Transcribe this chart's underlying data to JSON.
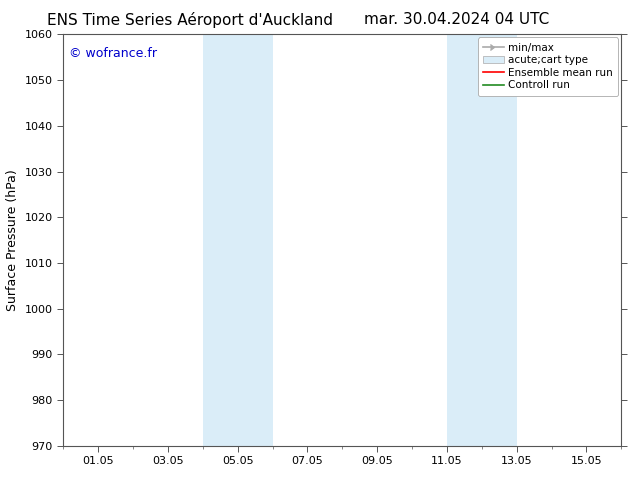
{
  "title_left": "ENS Time Series Aéroport d'Auckland",
  "title_right": "mar. 30.04.2024 04 UTC",
  "ylabel": "Surface Pressure (hPa)",
  "ylim": [
    970,
    1060
  ],
  "yticks": [
    970,
    980,
    990,
    1000,
    1010,
    1020,
    1030,
    1040,
    1050,
    1060
  ],
  "xtick_labels": [
    "01.05",
    "03.05",
    "05.05",
    "07.05",
    "09.05",
    "11.05",
    "13.05",
    "15.05"
  ],
  "xtick_positions": [
    1,
    3,
    5,
    7,
    9,
    11,
    13,
    15
  ],
  "xlim": [
    0,
    16
  ],
  "shaded_regions": [
    {
      "xstart": 4.0,
      "xend": 6.0,
      "color": "#daedf8"
    },
    {
      "xstart": 11.0,
      "xend": 13.0,
      "color": "#daedf8"
    }
  ],
  "watermark_text": "© wofrance.fr",
  "watermark_color": "#0000cc",
  "background_color": "#ffffff",
  "plot_bg_color": "#ffffff",
  "grid_color": "#bbbbbb",
  "title_fontsize": 11,
  "axis_label_fontsize": 9,
  "tick_fontsize": 8,
  "legend_fontsize": 7.5
}
